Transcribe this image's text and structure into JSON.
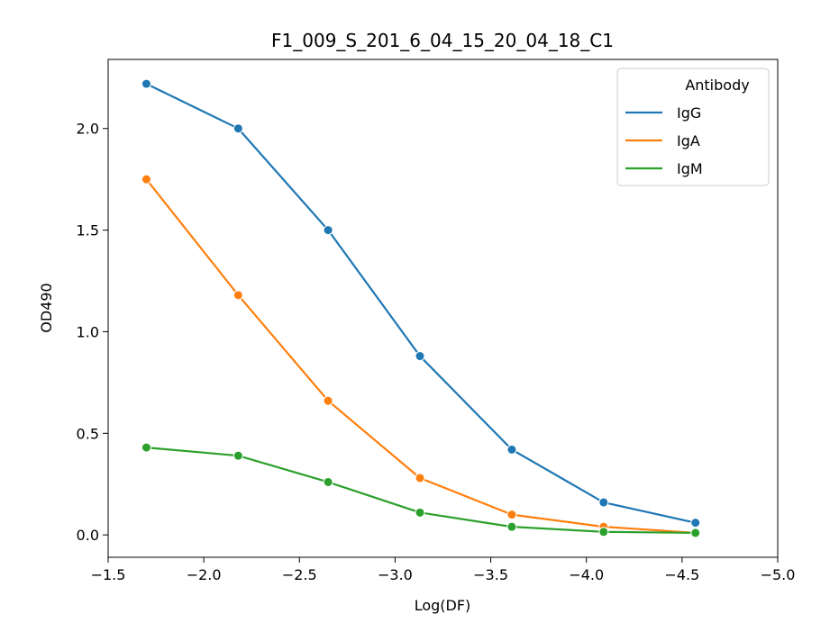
{
  "chart_data": {
    "type": "line",
    "title": "F1_009_S_201_6_04_15_20_04_18_C1",
    "xlabel": "Log(DF)",
    "ylabel": "OD490",
    "xlim": [
      -1.5,
      -5.0
    ],
    "ylim": [
      -0.11,
      2.34
    ],
    "x_reversed": true,
    "xticks": [
      -1.5,
      -2.0,
      -2.5,
      -3.0,
      -3.5,
      -4.0,
      -4.5,
      -5.0
    ],
    "xtick_labels": [
      "−1.5",
      "−2.0",
      "−2.5",
      "−3.0",
      "−3.5",
      "−4.0",
      "−4.5",
      "−5.0"
    ],
    "yticks": [
      0.0,
      0.5,
      1.0,
      1.5,
      2.0
    ],
    "ytick_labels": [
      "0.0",
      "0.5",
      "1.0",
      "1.5",
      "2.0"
    ],
    "grid": false,
    "legend_title": "Antibody",
    "legend_placement": "top-right",
    "x": [
      -1.7,
      -2.18,
      -2.65,
      -3.13,
      -3.61,
      -4.09,
      -4.57
    ],
    "series": [
      {
        "name": "IgG",
        "color": "#1f77b4",
        "values": [
          2.22,
          2.0,
          1.5,
          0.88,
          0.42,
          0.16,
          0.06
        ]
      },
      {
        "name": "IgA",
        "color": "#ff7f0e",
        "values": [
          1.75,
          1.18,
          0.66,
          0.28,
          0.1,
          0.04,
          0.01
        ]
      },
      {
        "name": "IgM",
        "color": "#2ca02c",
        "values": [
          0.43,
          0.39,
          0.26,
          0.11,
          0.04,
          0.015,
          0.01
        ]
      }
    ]
  }
}
